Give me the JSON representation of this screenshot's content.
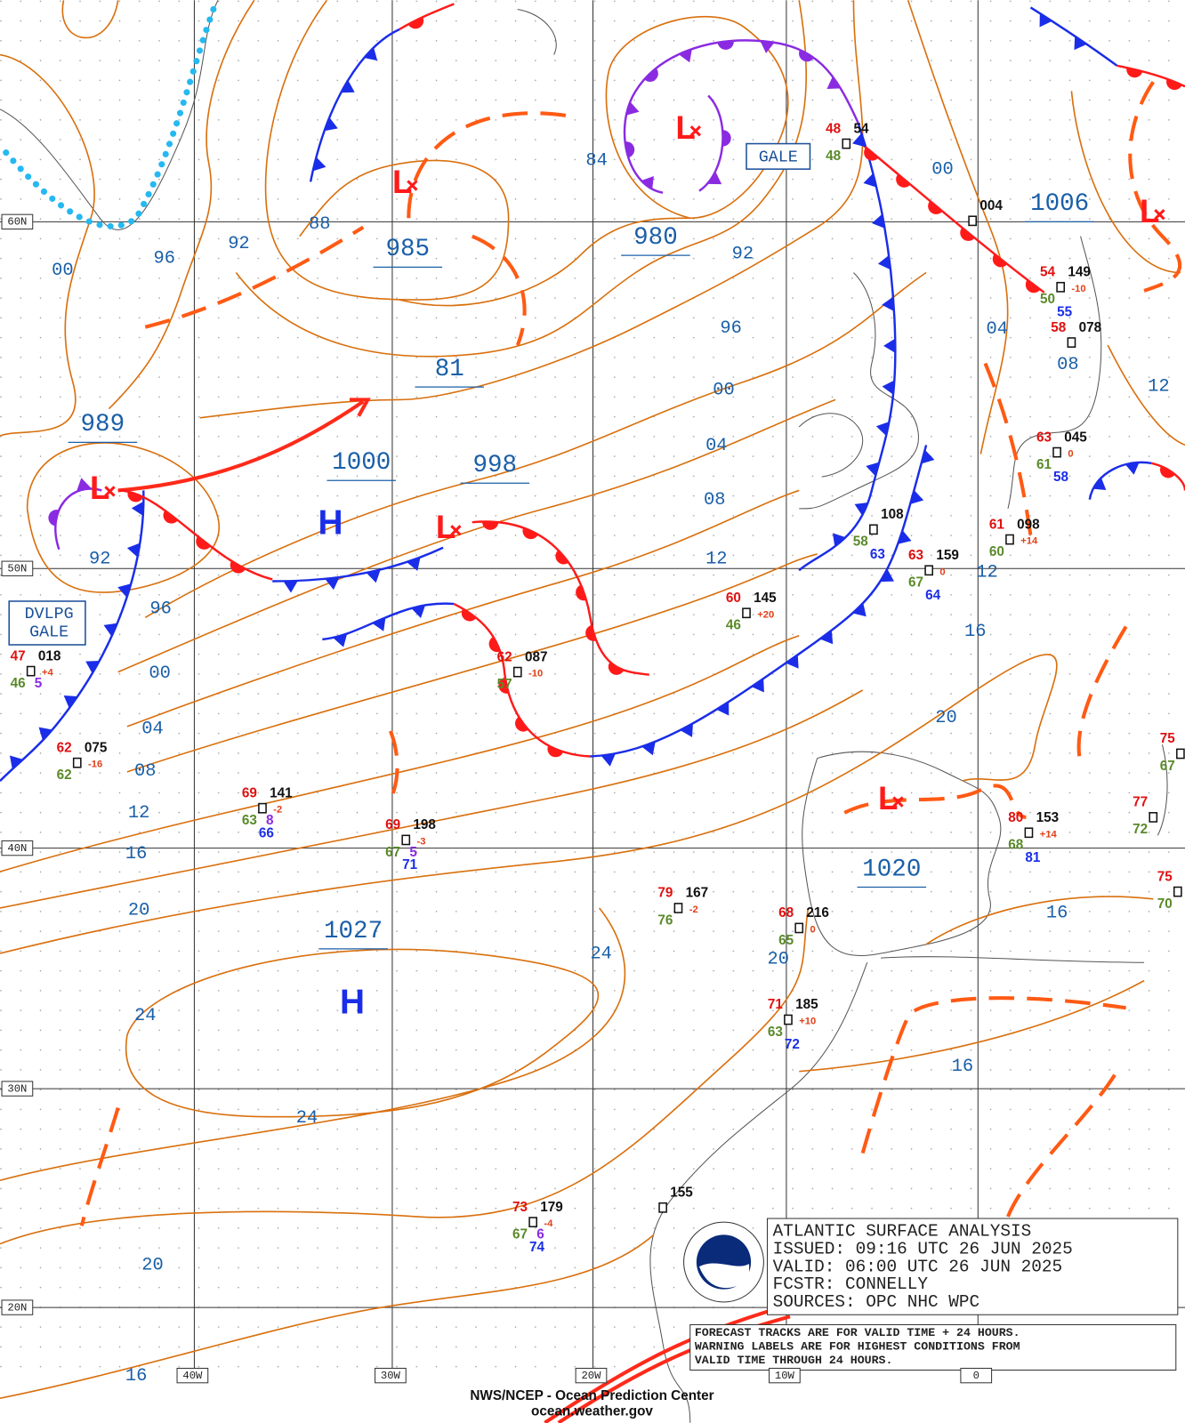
{
  "center_pressures": [
    "989",
    "985",
    "980",
    "81",
    "1000",
    "998",
    "1027",
    "1020",
    "1006"
  ],
  "highs": [
    "H",
    "H"
  ],
  "lows": [
    "L",
    "L",
    "L",
    "L",
    "L",
    "L"
  ],
  "isobar_labels": [
    "00",
    "96",
    "92",
    "88",
    "84",
    "92",
    "96",
    "00",
    "04",
    "08",
    "12",
    "92",
    "96",
    "00",
    "04",
    "08",
    "12",
    "16",
    "20",
    "24",
    "24",
    "24",
    "20",
    "20",
    "16",
    "12",
    "16",
    "16",
    "20",
    "16",
    "00",
    "04",
    "08",
    "12"
  ],
  "grid_labels": [
    "60N",
    "50N",
    "40N",
    "30N",
    "20N",
    "40W",
    "30W",
    "20W",
    "10W",
    "0"
  ],
  "warnings": [
    {
      "lines": [
        "GALE"
      ]
    },
    {
      "lines": [
        "DVLPG",
        "GALE"
      ]
    }
  ],
  "stations": [
    {
      "temp": "48",
      "pressure": "54",
      "dew": "48"
    },
    {
      "pressure": "004"
    },
    {
      "temp": "54",
      "pressure": "149",
      "dew": "50",
      "tendency": "-10",
      "wave": "55"
    },
    {
      "temp": "58",
      "pressure": "078"
    },
    {
      "temp": "63",
      "pressure": "045",
      "dew": "61",
      "tendency": "0",
      "wave": "58"
    },
    {
      "temp": "61",
      "pressure": "098",
      "dew": "60",
      "tendency": "+14"
    },
    {
      "temp": "63",
      "pressure": "159",
      "dew": "67",
      "tendency": "0",
      "wave": "64"
    },
    {
      "pressure": "108",
      "dew": "58",
      "wave": "63"
    },
    {
      "temp": "60",
      "pressure": "145",
      "dew": "46",
      "tendency": "+20"
    },
    {
      "temp": "62",
      "pressure": "087",
      "dew": "57",
      "tendency": "-10"
    },
    {
      "temp": "47",
      "pressure": "018",
      "dew": "46",
      "tendency": "+4",
      "extra": "5"
    },
    {
      "temp": "62",
      "pressure": "075",
      "dew": "62",
      "tendency": "-16"
    },
    {
      "temp": "69",
      "pressure": "141",
      "dew": "63",
      "tendency": "-2",
      "extra": "8",
      "wave": "66"
    },
    {
      "temp": "69",
      "pressure": "198",
      "dew": "67",
      "tendency": "-3",
      "extra": "5",
      "wave": "71"
    },
    {
      "temp": "79",
      "pressure": "167",
      "dew": "76",
      "tendency": "-2"
    },
    {
      "temp": "68",
      "pressure": "216",
      "dew": "65",
      "tendency": "0"
    },
    {
      "temp": "71",
      "pressure": "185",
      "dew": "63",
      "tendency": "+10",
      "wave": "72"
    },
    {
      "temp": "80",
      "pressure": "153",
      "dew": "68",
      "tendency": "+14",
      "wave": "81"
    },
    {
      "temp": "73",
      "pressure": "179",
      "dew": "67",
      "tendency": "-4",
      "extra": "6",
      "wave": "74"
    },
    {
      "pressure": "155"
    },
    {
      "temp": "75",
      "dew": "67"
    },
    {
      "temp": "77",
      "dew": "72"
    },
    {
      "temp": "75",
      "dew": "70"
    }
  ],
  "info_box": {
    "lines": [
      "ATLANTIC SURFACE ANALYSIS",
      "ISSUED:  09:16 UTC 26 JUN 2025",
      "VALID:  06:00 UTC 26 JUN 2025",
      "FCSTR:   CONNELLY",
      "SOURCES:  OPC NHC WPC"
    ],
    "note": [
      "FORECAST TRACKS ARE FOR VALID TIME + 24 HOURS.",
      "WARNING LABELS ARE FOR HIGHEST CONDITIONS FROM",
      "VALID TIME THROUGH 24 HOURS."
    ]
  },
  "footer": [
    "NWS/NCEP - Ocean Prediction Center",
    "ocean.weather.gov"
  ]
}
